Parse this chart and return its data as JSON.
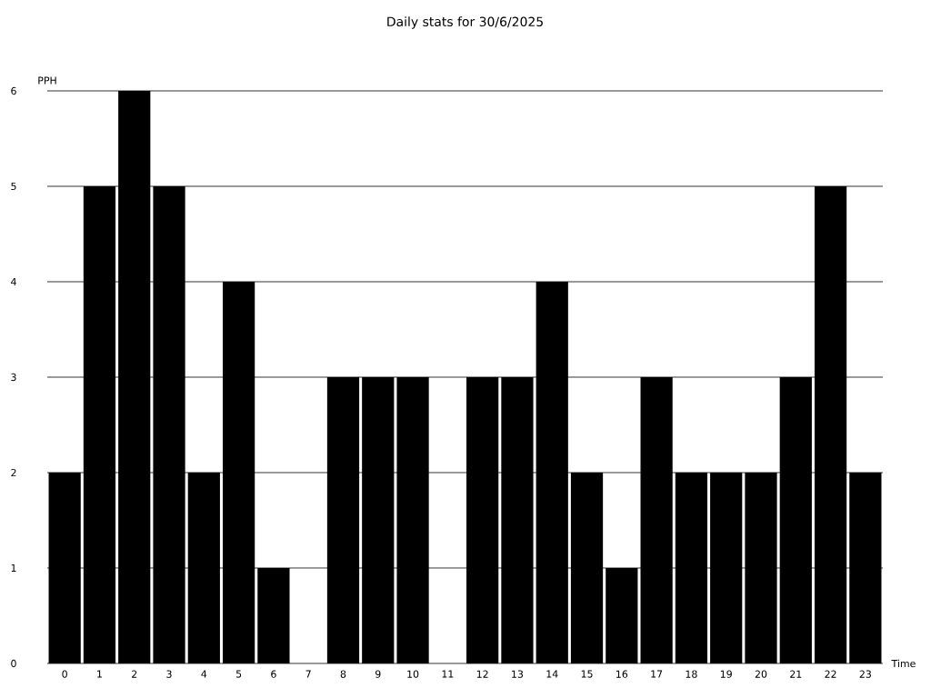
{
  "chart_data": {
    "type": "bar",
    "title": "Daily stats for 30/6/2025",
    "xlabel": "Time",
    "ylabel": "PPH",
    "categories": [
      "0",
      "1",
      "2",
      "3",
      "4",
      "5",
      "6",
      "7",
      "8",
      "9",
      "10",
      "11",
      "12",
      "13",
      "14",
      "15",
      "16",
      "17",
      "18",
      "19",
      "20",
      "21",
      "22",
      "23"
    ],
    "values": [
      2,
      5,
      6,
      5,
      2,
      4,
      1,
      0,
      3,
      3,
      3,
      0,
      3,
      3,
      4,
      2,
      1,
      3,
      2,
      2,
      2,
      3,
      5,
      2
    ],
    "color": "#000000",
    "ylim": [
      0,
      6
    ],
    "yticks": [
      0,
      1,
      2,
      3,
      4,
      5,
      6
    ],
    "grid": "y"
  }
}
